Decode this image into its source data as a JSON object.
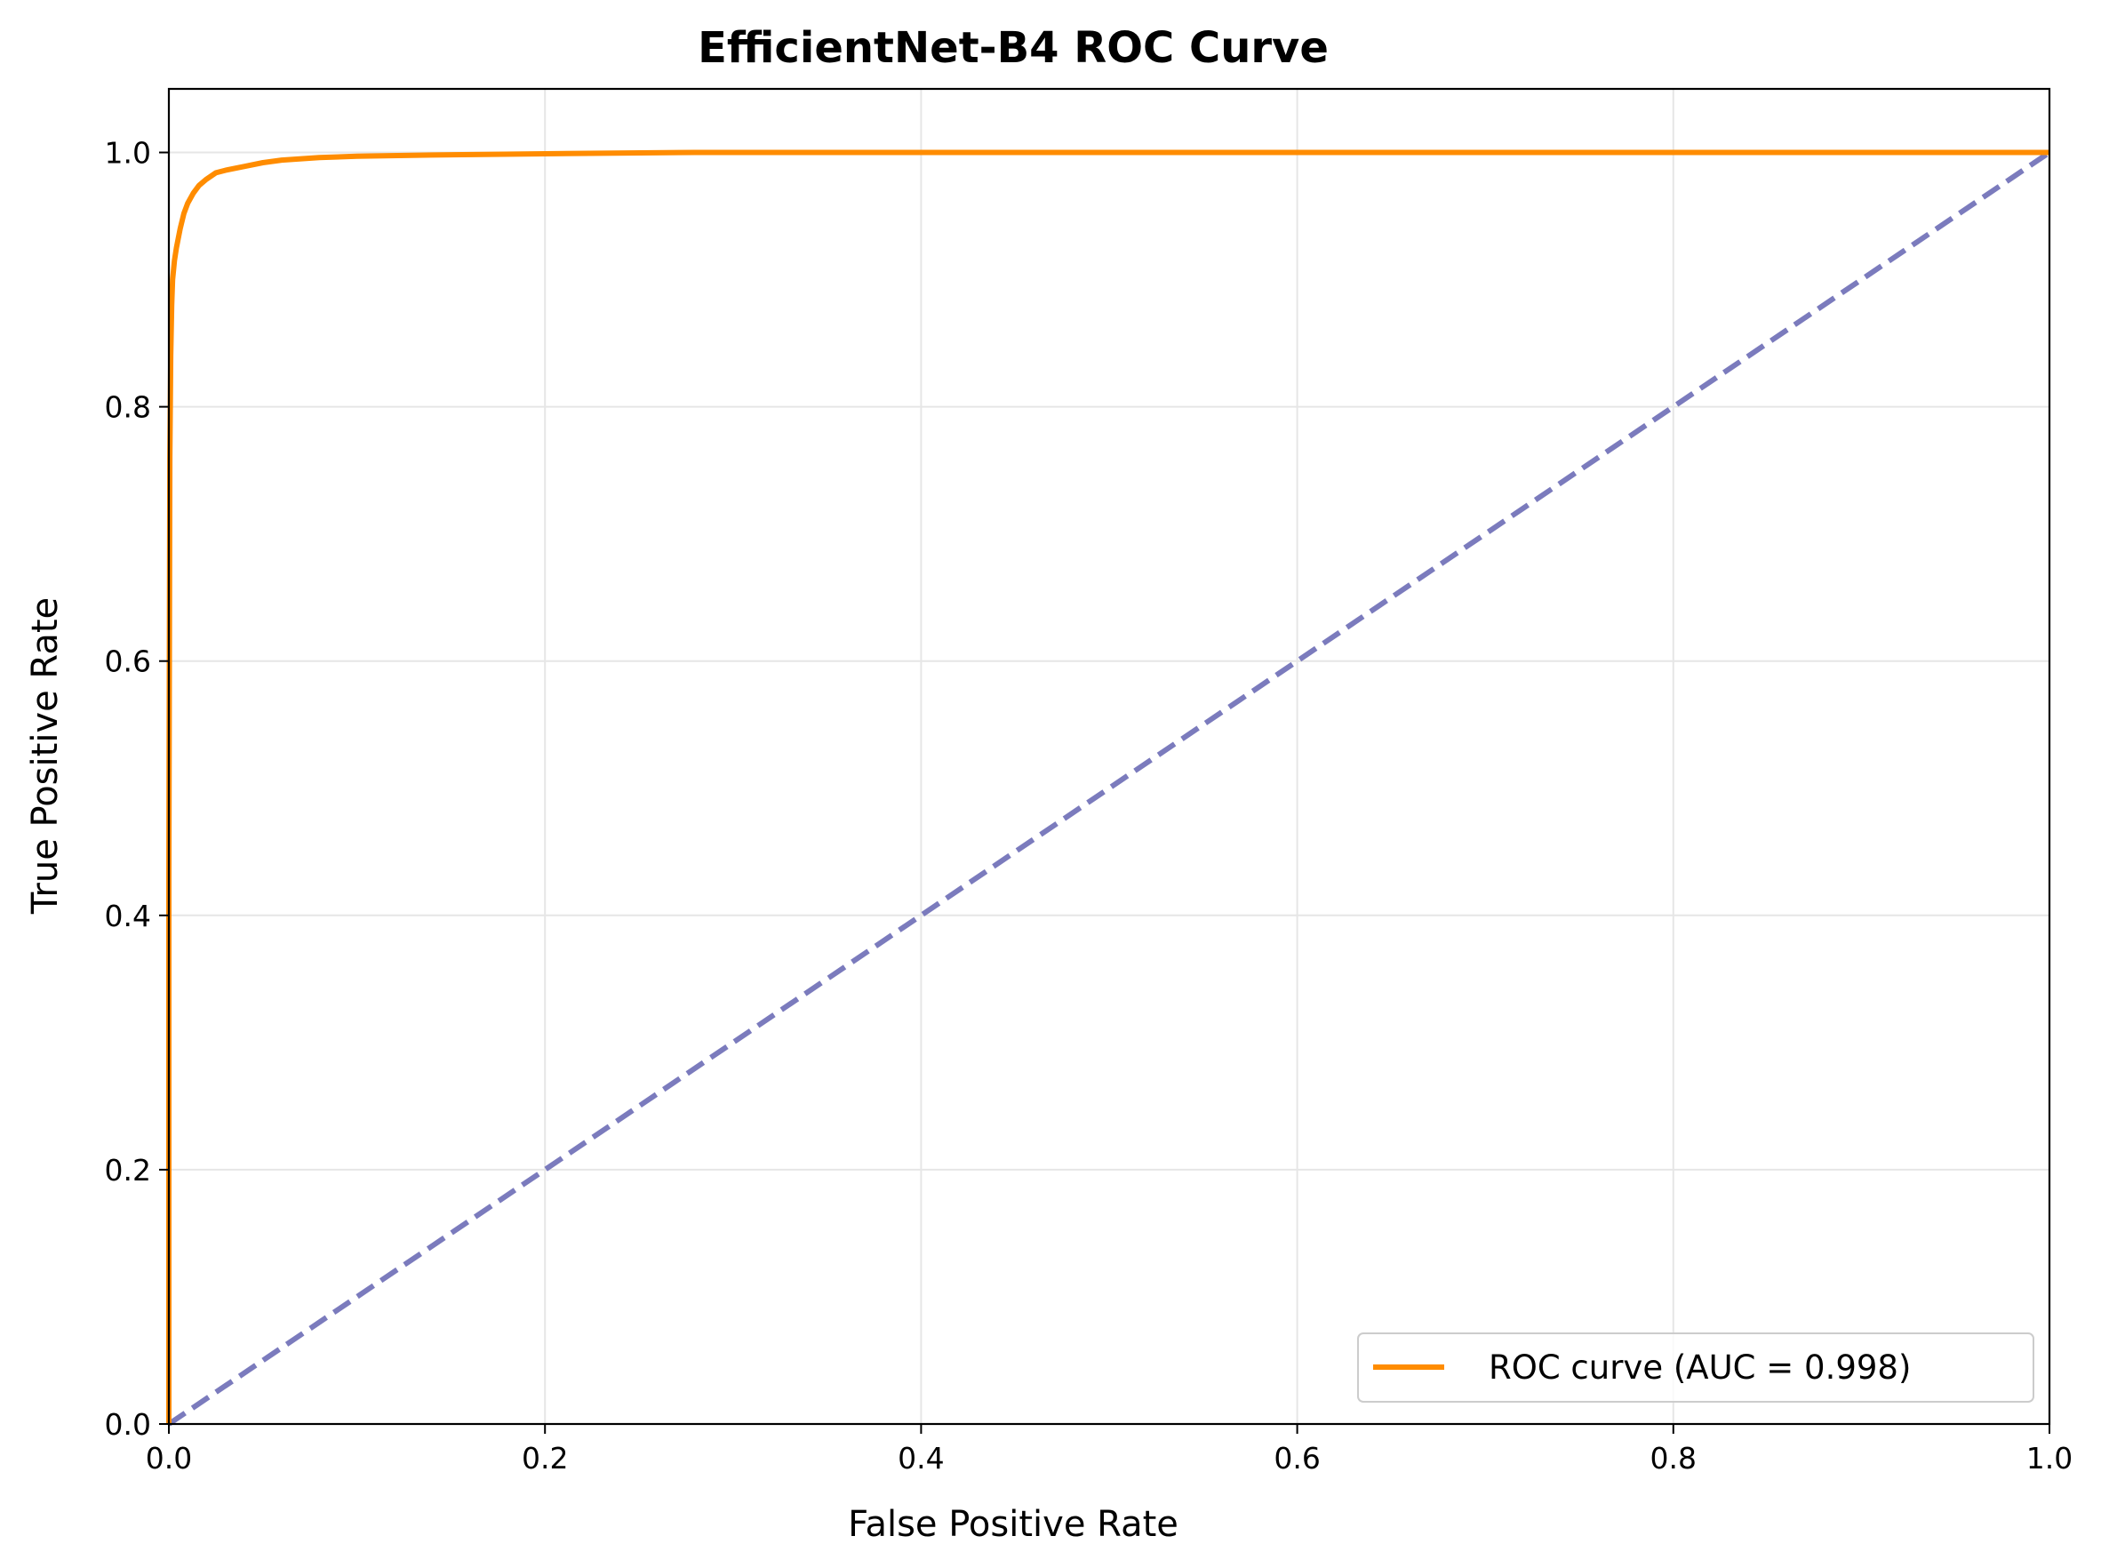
{
  "chart_data": {
    "type": "line",
    "title": "EfficientNet-B4 ROC Curve",
    "xlabel": "False Positive Rate",
    "ylabel": "True Positive Rate",
    "xlim": [
      0.0,
      1.0
    ],
    "ylim": [
      0.0,
      1.05
    ],
    "xticks": [
      "0.0",
      "0.2",
      "0.4",
      "0.6",
      "0.8",
      "1.0"
    ],
    "yticks": [
      "0.0",
      "0.2",
      "0.4",
      "0.6",
      "0.8",
      "1.0"
    ],
    "grid": true,
    "legend_position": "bottom-right",
    "series": [
      {
        "name": "ROC curve (AUC = 0.998)",
        "color": "#ff8c00",
        "style": "solid",
        "x": [
          0.0,
          0.0,
          0.0005,
          0.001,
          0.0015,
          0.002,
          0.003,
          0.004,
          0.006,
          0.008,
          0.01,
          0.013,
          0.016,
          0.02,
          0.025,
          0.03,
          0.04,
          0.05,
          0.06,
          0.08,
          0.1,
          0.14,
          0.2,
          0.28,
          0.4,
          0.6,
          0.8,
          1.0
        ],
        "y": [
          0.0,
          0.43,
          0.76,
          0.84,
          0.88,
          0.9,
          0.915,
          0.925,
          0.94,
          0.952,
          0.96,
          0.968,
          0.974,
          0.979,
          0.984,
          0.986,
          0.989,
          0.992,
          0.994,
          0.996,
          0.997,
          0.998,
          0.999,
          1.0,
          1.0,
          1.0,
          1.0,
          1.0
        ]
      },
      {
        "name": "",
        "color": "#7b7bbd",
        "style": "dashed",
        "x": [
          0.0,
          1.0
        ],
        "y": [
          0.0,
          1.0
        ]
      }
    ]
  }
}
